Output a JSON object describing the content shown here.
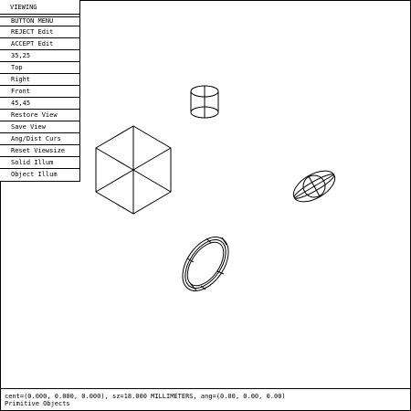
{
  "menu": {
    "title": "VIEWING",
    "items": [
      {
        "label": "BUTTON MENU"
      },
      {
        "label": "REJECT Edit"
      },
      {
        "label": "ACCEPT Edit"
      },
      {
        "label": "35,25"
      },
      {
        "label": "Top"
      },
      {
        "label": "Right"
      },
      {
        "label": "Front"
      },
      {
        "label": "45,45"
      },
      {
        "label": "Restore View"
      },
      {
        "label": "Save View"
      },
      {
        "label": "Ang/Dist Curs"
      },
      {
        "label": "Reset Viewsize"
      },
      {
        "label": "Solid Illum"
      },
      {
        "label": "Object Illum"
      }
    ]
  },
  "status": {
    "line1": "cent=(0.000, 0.000, 0.000), sz=18.000 MILLIMETERS, ang=(0.00, 0.00, 0.00)",
    "line2": "Primitive Objects"
  },
  "colors": {
    "background": "#ffffff",
    "wireframe": "#000000"
  }
}
